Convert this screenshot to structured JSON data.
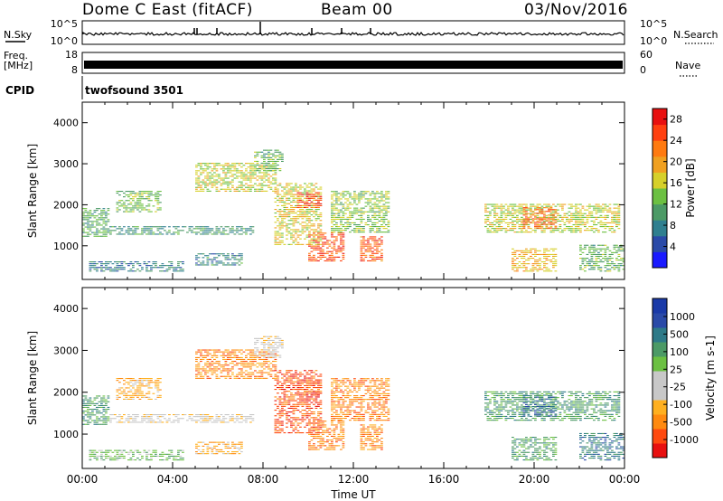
{
  "header": {
    "station": "Dome C East (fitACF)",
    "beam": "Beam 00",
    "date": "03/Nov/2016"
  },
  "params": {
    "nsky_label": "N.Sky",
    "nsky_ticks": [
      "10^5",
      "10^0"
    ],
    "nsearch_label": "N.Search",
    "nsearch_ticks": [
      "10^5",
      "10^0"
    ],
    "freq_label_1": "Freq.",
    "freq_label_2": "[MHz]",
    "freq_ticks": [
      "18",
      "8"
    ],
    "nave_label": "Nave",
    "nave_ticks": [
      "60",
      "0"
    ],
    "cpid_label": "CPID",
    "cpid_value": "twofsound 3501"
  },
  "colors": {
    "power": [
      "#1a1aff",
      "#2a4aa8",
      "#2f7f8f",
      "#4c9a66",
      "#6cc042",
      "#d6d02a",
      "#f0a020",
      "#ff7a10",
      "#ff4010",
      "#e81010"
    ],
    "velocity": [
      "#e81010",
      "#ff4a10",
      "#ff8a10",
      "#ffb020",
      "#c8c8c8",
      "#c8c8c8",
      "#6cc042",
      "#4c9a66",
      "#2e7a88",
      "#2a4aa8",
      "#1a3aa8"
    ]
  },
  "chart_data": [
    {
      "type": "heatmap",
      "panel": "power",
      "ylabel": "Slant Range [km]",
      "x_range_hours": [
        0,
        24
      ],
      "ylim": [
        180,
        4500
      ],
      "y_ticks": [
        "1000",
        "2000",
        "3000",
        "4000"
      ],
      "colorbar": {
        "label": "Power [dB]",
        "ticks": [
          "4",
          "8",
          "12",
          "16",
          "20",
          "24",
          "28"
        ],
        "range": [
          0,
          30
        ]
      },
      "echo_regions": [
        {
          "t0": 0.0,
          "t1": 1.2,
          "r0": 1200,
          "r1": 1900,
          "level": 11
        },
        {
          "t0": 1.2,
          "t1": 7.5,
          "r0": 1250,
          "r1": 1450,
          "level": 9
        },
        {
          "t0": 0.3,
          "t1": 4.5,
          "r0": 350,
          "r1": 600,
          "level": 7
        },
        {
          "t0": 5.0,
          "t1": 7.0,
          "r0": 500,
          "r1": 800,
          "level": 8
        },
        {
          "t0": 1.5,
          "t1": 3.5,
          "r0": 1800,
          "r1": 2300,
          "level": 13
        },
        {
          "t0": 5.0,
          "t1": 8.5,
          "r0": 2300,
          "r1": 3000,
          "level": 16
        },
        {
          "t0": 7.6,
          "t1": 8.8,
          "r0": 2800,
          "r1": 3300,
          "level": 12
        },
        {
          "t0": 8.5,
          "t1": 10.5,
          "r0": 1000,
          "r1": 2500,
          "level": 17
        },
        {
          "t0": 9.5,
          "t1": 10.5,
          "r0": 1900,
          "r1": 2300,
          "level": 27
        },
        {
          "t0": 10.0,
          "t1": 11.5,
          "r0": 600,
          "r1": 1300,
          "level": 26
        },
        {
          "t0": 12.3,
          "t1": 13.2,
          "r0": 600,
          "r1": 1200,
          "level": 25
        },
        {
          "t0": 11.0,
          "t1": 13.5,
          "r0": 1300,
          "r1": 2300,
          "level": 14
        },
        {
          "t0": 17.8,
          "t1": 23.8,
          "r0": 1300,
          "r1": 2000,
          "level": 16
        },
        {
          "t0": 19.5,
          "t1": 21.0,
          "r0": 1400,
          "r1": 1900,
          "level": 24
        },
        {
          "t0": 19.0,
          "t1": 21.0,
          "r0": 350,
          "r1": 900,
          "level": 19
        },
        {
          "t0": 22.0,
          "t1": 24.0,
          "r0": 350,
          "r1": 1000,
          "level": 12
        }
      ]
    },
    {
      "type": "heatmap",
      "panel": "velocity",
      "ylabel": "Slant Range [km]",
      "xlabel": "Time UT",
      "x_ticks": [
        "00:00",
        "04:00",
        "08:00",
        "12:00",
        "16:00",
        "20:00",
        "00:00"
      ],
      "x_range_hours": [
        0,
        24
      ],
      "ylim": [
        180,
        4500
      ],
      "y_ticks": [
        "1000",
        "2000",
        "3000",
        "4000"
      ],
      "colorbar": {
        "label": "Velocity [m s-1]",
        "ticks": [
          "1000",
          "500",
          "100",
          "25",
          "-25",
          "-100",
          "-500",
          "-1000"
        ]
      },
      "echo_regions": [
        {
          "t0": 0.0,
          "t1": 1.2,
          "r0": 1200,
          "r1": 1900,
          "level": 7
        },
        {
          "t0": 1.2,
          "t1": 7.5,
          "r0": 1250,
          "r1": 1450,
          "level": 4
        },
        {
          "t0": 0.3,
          "t1": 4.5,
          "r0": 350,
          "r1": 600,
          "level": 6
        },
        {
          "t0": 5.0,
          "t1": 7.0,
          "r0": 500,
          "r1": 800,
          "level": 3
        },
        {
          "t0": 1.5,
          "t1": 3.5,
          "r0": 1800,
          "r1": 2300,
          "level": 3
        },
        {
          "t0": 5.0,
          "t1": 8.5,
          "r0": 2300,
          "r1": 3000,
          "level": 2
        },
        {
          "t0": 7.6,
          "t1": 8.8,
          "r0": 2800,
          "r1": 3300,
          "level": 4
        },
        {
          "t0": 8.5,
          "t1": 10.5,
          "r0": 1000,
          "r1": 2500,
          "level": 1
        },
        {
          "t0": 9.5,
          "t1": 10.5,
          "r0": 1900,
          "r1": 2300,
          "level": 1
        },
        {
          "t0": 10.0,
          "t1": 11.5,
          "r0": 600,
          "r1": 1300,
          "level": 2
        },
        {
          "t0": 12.3,
          "t1": 13.2,
          "r0": 600,
          "r1": 1200,
          "level": 2
        },
        {
          "t0": 11.0,
          "t1": 13.5,
          "r0": 1300,
          "r1": 2300,
          "level": 2
        },
        {
          "t0": 17.8,
          "t1": 23.8,
          "r0": 1300,
          "r1": 2000,
          "level": 7
        },
        {
          "t0": 19.5,
          "t1": 21.0,
          "r0": 1400,
          "r1": 1900,
          "level": 8
        },
        {
          "t0": 19.0,
          "t1": 21.0,
          "r0": 350,
          "r1": 900,
          "level": 7
        },
        {
          "t0": 22.0,
          "t1": 24.0,
          "r0": 350,
          "r1": 1000,
          "level": 8
        }
      ]
    }
  ]
}
